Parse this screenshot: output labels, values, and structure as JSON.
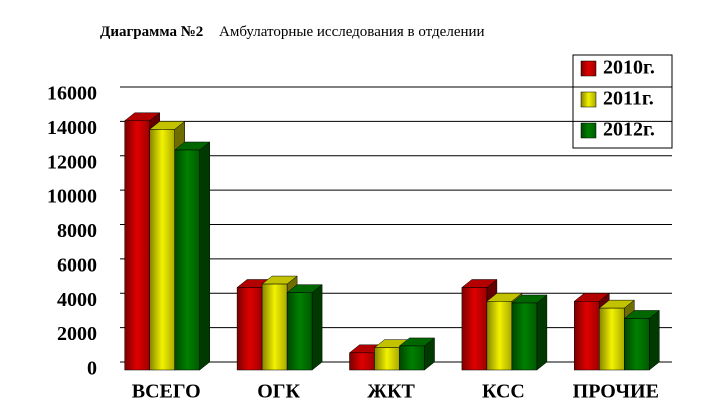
{
  "chart_data": {
    "type": "bar3d",
    "title": "Диаграмма №2",
    "subtitle": "Амбулаторные исследования в отделении",
    "categories": [
      "ВСЕГО",
      "ОГК",
      "ЖКТ",
      "КСС",
      "ПРОЧИЕ"
    ],
    "series": [
      {
        "name": "2010г.",
        "color": "#e00000",
        "values": [
          14500,
          4800,
          1000,
          4800,
          4000
        ]
      },
      {
        "name": "2011г.",
        "color": "#f2f200",
        "values": [
          14000,
          5000,
          1300,
          4000,
          3600
        ]
      },
      {
        "name": "2012г.",
        "color": "#008000",
        "values": [
          12800,
          4500,
          1400,
          3900,
          3000
        ]
      }
    ],
    "ylim": [
      0,
      16000
    ],
    "yticks": [
      0,
      2000,
      4000,
      6000,
      8000,
      10000,
      12000,
      14000,
      16000
    ],
    "grid": true
  }
}
